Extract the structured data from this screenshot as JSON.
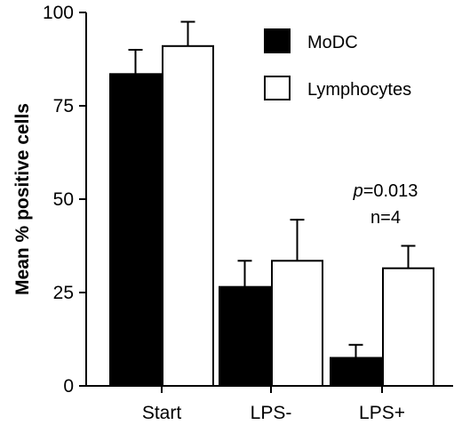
{
  "chart_data": {
    "type": "bar",
    "categories": [
      "Start",
      "LPS-",
      "LPS+"
    ],
    "series": [
      {
        "name": "MoDC",
        "values": [
          83.5,
          26.5,
          7.5
        ],
        "errors": [
          6.5,
          7.0,
          3.5
        ],
        "color": "#000000"
      },
      {
        "name": "Lymphocytes",
        "values": [
          91.0,
          33.5,
          31.5
        ],
        "errors": [
          6.5,
          11.0,
          6.0
        ],
        "color": "#ffffff"
      }
    ],
    "ylabel": "Mean % positive cells",
    "xlabel": "",
    "ylim": [
      0,
      100
    ],
    "yticks": [
      0,
      25,
      50,
      75,
      100
    ],
    "annotation": {
      "p_symbol": "p",
      "p_value": "=0.013",
      "n": "n=4"
    },
    "legend": "top-right",
    "grid": false
  }
}
